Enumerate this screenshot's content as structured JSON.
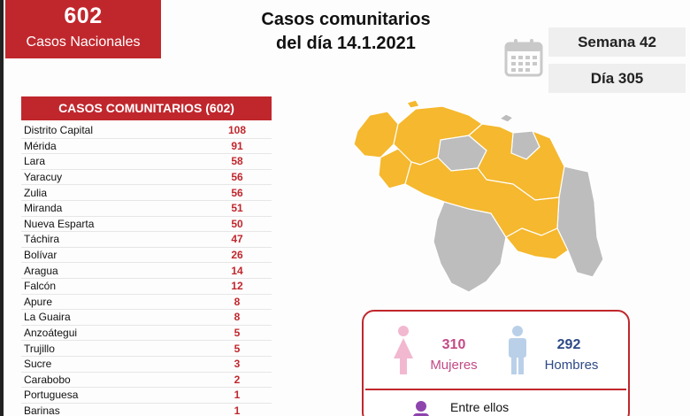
{
  "national": {
    "number": "602",
    "label": "Casos Nacionales"
  },
  "title": {
    "line1": "Casos comunitarios",
    "line2": "del día 14.1.2021"
  },
  "calendar": {
    "week": "Semana 42",
    "day": "Día 305",
    "icon": "calendar-icon"
  },
  "table": {
    "header": "CASOS COMUNITARIOS (602)",
    "rows": [
      {
        "state": "Distrito Capital",
        "count": "108"
      },
      {
        "state": "Mérida",
        "count": "91"
      },
      {
        "state": "Lara",
        "count": "58"
      },
      {
        "state": "Yaracuy",
        "count": "56"
      },
      {
        "state": "Zulia",
        "count": "56"
      },
      {
        "state": "Miranda",
        "count": "51"
      },
      {
        "state": "Nueva Esparta",
        "count": "50"
      },
      {
        "state": "Táchira",
        "count": "47"
      },
      {
        "state": "Bolívar",
        "count": "26"
      },
      {
        "state": "Aragua",
        "count": "14"
      },
      {
        "state": "Falcón",
        "count": "12"
      },
      {
        "state": "Apure",
        "count": "8"
      },
      {
        "state": "La Guaira",
        "count": "8"
      },
      {
        "state": "Anzoátegui",
        "count": "5"
      },
      {
        "state": "Trujillo",
        "count": "5"
      },
      {
        "state": "Sucre",
        "count": "3"
      },
      {
        "state": "Carabobo",
        "count": "2"
      },
      {
        "state": "Portuguesa",
        "count": "1"
      },
      {
        "state": "Barinas",
        "count": "1"
      }
    ]
  },
  "gender": {
    "women_count": "310",
    "women_label": "Mujeres",
    "men_count": "292",
    "men_label": "Hombres",
    "note": "Entre ellos"
  },
  "colors": {
    "accent_red": "#c0272d",
    "map_active": "#f5b82e",
    "map_inactive": "#bdbdbd",
    "women": "#c24a86",
    "men": "#2d4a86"
  }
}
